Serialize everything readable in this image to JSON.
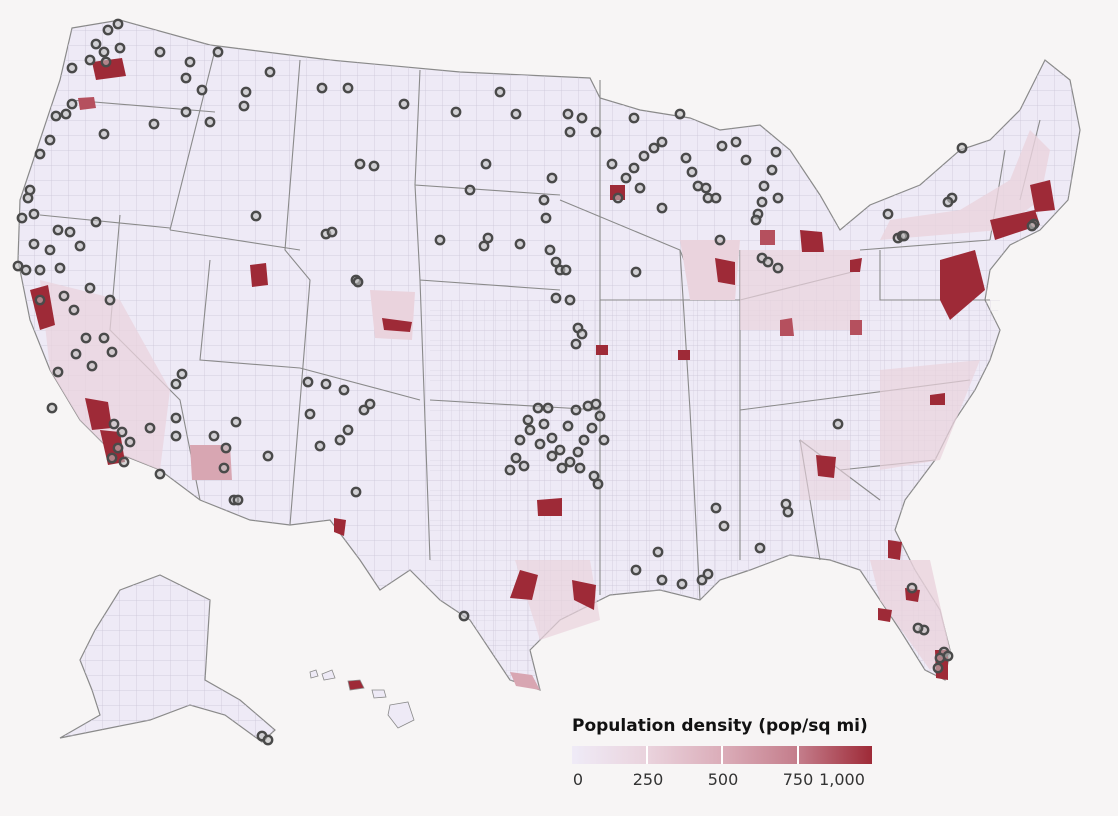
{
  "map": {
    "legend": {
      "title": "Population density (pop/sq mi)",
      "ticks": [
        "0",
        "250",
        "500",
        "750",
        "1,000"
      ],
      "colors": [
        "#efebf7",
        "#ead3dd",
        "#dbadb9",
        "#c47d8b",
        "#9e2a37"
      ]
    },
    "colors": {
      "base": "#eeeaf6",
      "low": "#ead3dd",
      "mid": "#d8a6b2",
      "high": "#9e2a37",
      "border": "#8a8a8a",
      "marker": "#4a4a4a"
    }
  }
}
